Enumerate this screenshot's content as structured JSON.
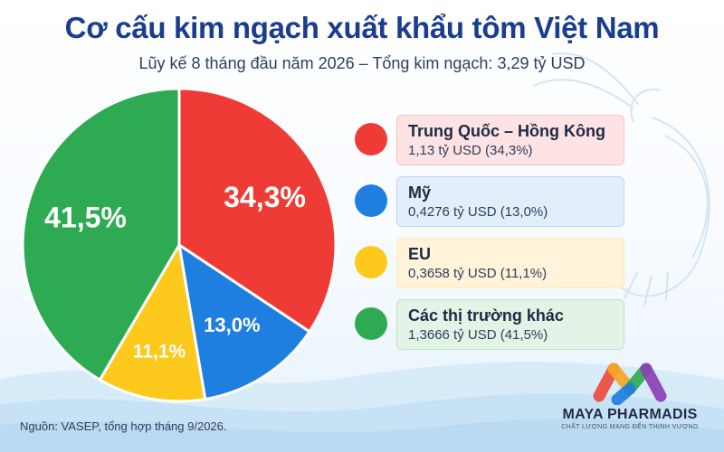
{
  "header": {
    "title": "Cơ cấu kim ngạch xuất khẩu tôm Việt Nam",
    "subtitle": "Lũy kế 8 tháng đầu năm 2026 – Tổng kim ngạch: 3,29 tỷ USD"
  },
  "chart_data": {
    "type": "pie",
    "title": "Cơ cấu kim ngạch xuất khẩu tôm Việt Nam",
    "subtitle": "Lũy kế 8 tháng đầu năm 2026 – Tổng kim ngạch: 3,29 tỷ USD",
    "slices": [
      {
        "name": "Trung Quốc – Hồng Kông",
        "value": 1.13,
        "percent_label": "34,3%",
        "value_label": "1,13 tỷ USD (34,3%)",
        "color": "#ef3b36"
      },
      {
        "name": "Mỹ",
        "value": 0.4276,
        "percent_label": "13,0%",
        "value_label": "0,4276 tỷ USD (13,0%)",
        "color": "#1f7fe0"
      },
      {
        "name": "EU",
        "value": 0.3658,
        "percent_label": "11,1%",
        "value_label": "0,3658 tỷ USD (11,1%)",
        "color": "#fcc91c"
      },
      {
        "name": "Các thị trường khác",
        "value": 1.3666,
        "percent_label": "41,5%",
        "value_label": "1,3666 tỷ USD (41,5%)",
        "color": "#2eab52"
      }
    ],
    "legend_position": "right"
  },
  "legend_styles": [
    {
      "bg": "#fde3e3"
    },
    {
      "bg": "#e2eefa"
    },
    {
      "bg": "#fff3da"
    },
    {
      "bg": "#e3f3e6"
    }
  ],
  "footer": {
    "source": "Nguồn: VASEP, tổng hợp tháng 9/2026."
  },
  "logo": {
    "name": "MAYA PHARMADIS",
    "tagline": "CHẤT LƯỢNG MANG ĐẾN THỊNH VƯỢNG",
    "colors": [
      "#ef4b3f",
      "#f7a823",
      "#2eab52",
      "#1f7fe0",
      "#8e3fb6"
    ]
  }
}
